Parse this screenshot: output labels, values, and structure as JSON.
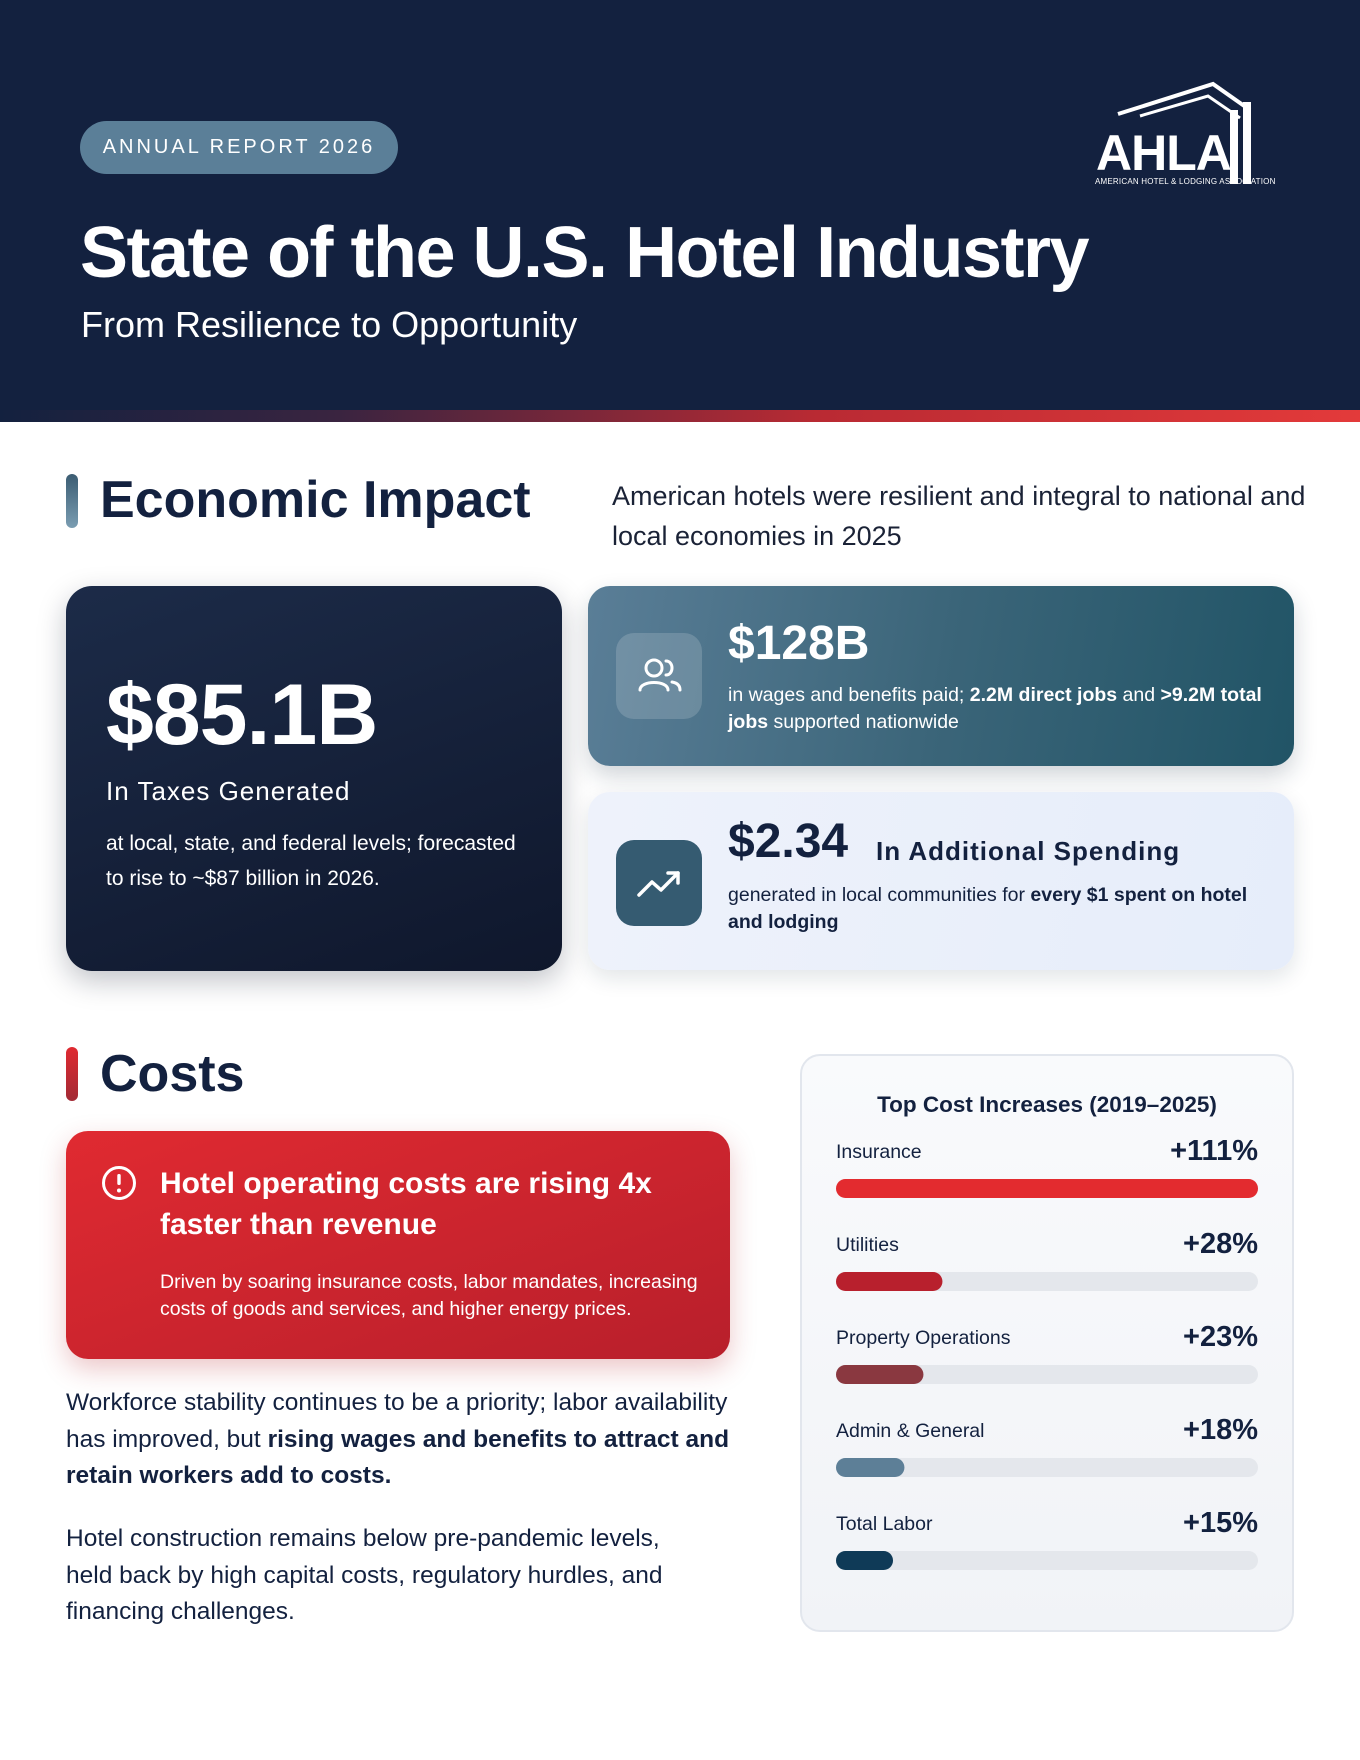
{
  "header": {
    "badge": "ANNUAL REPORT 2026",
    "title": "State of the U.S. Hotel Industry",
    "subtitle": "From Resilience to Opportunity",
    "logo_text": "AHLA",
    "logo_subtext": "AMERICAN HOTEL & LODGING ASSOCIATION"
  },
  "economic": {
    "heading": "Economic Impact",
    "intro": "American hotels were resilient and integral to national and local economies in 2025",
    "taxes": {
      "value": "$85.1B",
      "label": "In Taxes Generated",
      "description": "at local, state, and federal levels; forecasted to rise to ~$87 billion in 2026."
    },
    "wages": {
      "icon": "people-icon",
      "value": "$128B",
      "desc_1": "in wages and benefits paid; ",
      "desc_2": "2.2M direct jobs",
      "desc_3": " and ",
      "desc_4": ">9.2M total jobs",
      "desc_5": " supported nationwide"
    },
    "spending": {
      "icon": "trending-up-icon",
      "value": "$2.34",
      "label": "In Additional Spending",
      "desc_1": "generated in local communities for ",
      "desc_2": "every $1 spent on hotel and lodging"
    }
  },
  "costs": {
    "heading": "Costs",
    "alert": {
      "icon": "alert-circle-icon",
      "title": "Hotel operating costs are rising 4x faster than revenue",
      "description": "Driven by soaring insurance costs, labor mandates, increasing costs of goods and services, and higher energy prices."
    },
    "para1_a": "Workforce stability continues to be a priority; labor availability has improved, but ",
    "para1_b": "rising wages and benefits to attract and retain workers add to costs.",
    "para2": "Hotel construction remains below pre-pandemic levels, held back by high capital costs, regulatory hurdles, and financing challenges."
  },
  "colors": {
    "navy": "#13213f",
    "red": "#e32b2f",
    "accent_blue": "#5b7f98"
  },
  "chart_data": {
    "type": "bar",
    "title": "Top Cost Increases (2019–2025)",
    "categories": [
      "Insurance",
      "Utilities",
      "Property Operations",
      "Admin & General",
      "Total Labor"
    ],
    "values": [
      111,
      28,
      23,
      18,
      15
    ],
    "value_labels": [
      "+111%",
      "+28%",
      "+23%",
      "+18%",
      "+15%"
    ],
    "colors": [
      "#e32b2f",
      "#b8202d",
      "#8a3840",
      "#5d7f97",
      "#0f3a57"
    ],
    "xlim": [
      0,
      111
    ]
  }
}
